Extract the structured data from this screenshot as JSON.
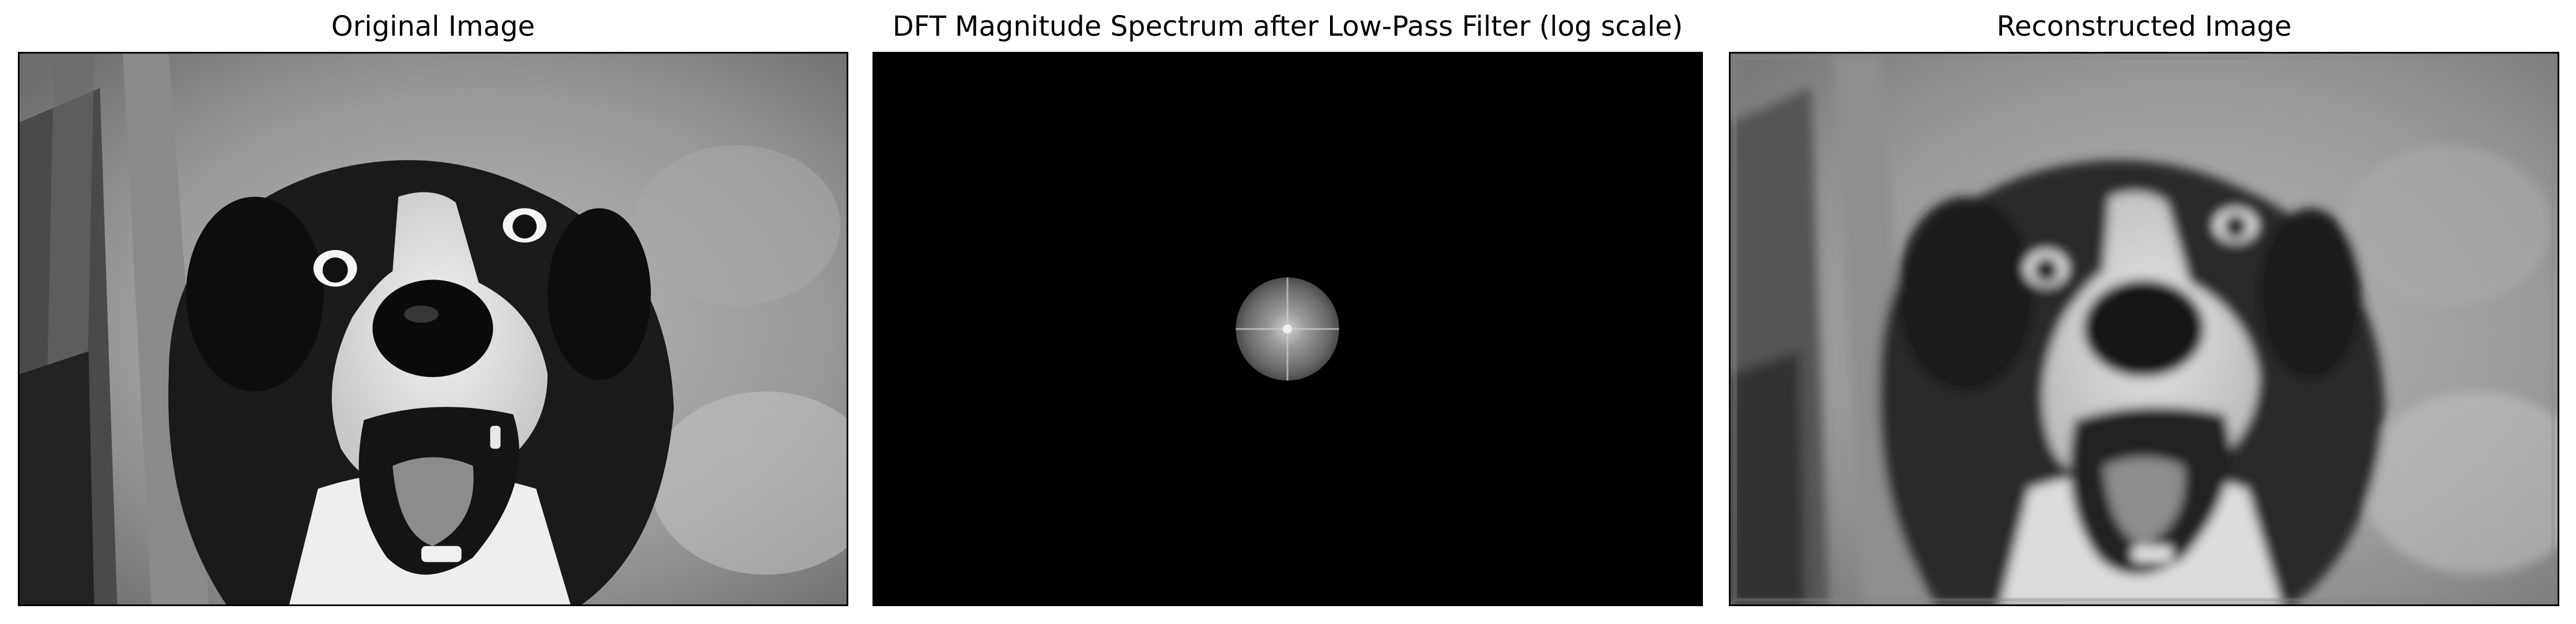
{
  "figure": {
    "panels": [
      {
        "title": "Original Image"
      },
      {
        "title": "DFT Magnitude Spectrum after Low-Pass Filter (log scale)"
      },
      {
        "title": "Reconstructed Image"
      }
    ]
  }
}
